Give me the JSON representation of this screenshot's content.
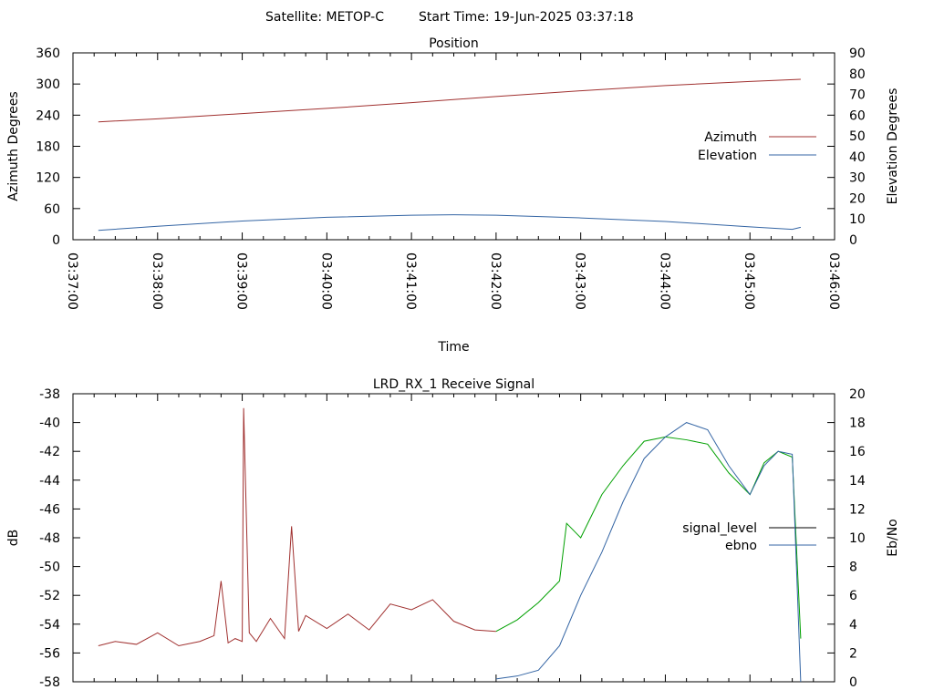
{
  "header": {
    "satellite": "Satellite: METOP-C",
    "start_time": "Start Time: 19-Jun-2025 03:37:18"
  },
  "chart_data": [
    {
      "type": "line",
      "title": "Position",
      "xlabel": "Time",
      "ylabel": "Azimuth Degrees",
      "y2label": "Elevation Degrees",
      "xlim": [
        "03:37:00",
        "03:46:00"
      ],
      "ylim": [
        0,
        360
      ],
      "y2lim": [
        0,
        90
      ],
      "xticks": [
        "03:37:00",
        "03:38:00",
        "03:39:00",
        "03:40:00",
        "03:41:00",
        "03:42:00",
        "03:43:00",
        "03:44:00",
        "03:45:00",
        "03:46:00"
      ],
      "yticks": [
        "0",
        "60",
        "120",
        "180",
        "240",
        "300",
        "360"
      ],
      "y2ticks": [
        "0",
        "10",
        "20",
        "30",
        "40",
        "50",
        "60",
        "70",
        "80",
        "90"
      ],
      "legend_position": "right",
      "grid": false,
      "series": [
        {
          "name": "Azimuth",
          "axis": "y",
          "color": "#a0302f",
          "x": [
            "03:37:18",
            "03:38:00",
            "03:39:00",
            "03:40:00",
            "03:41:00",
            "03:42:00",
            "03:43:00",
            "03:44:00",
            "03:45:00",
            "03:45:36"
          ],
          "y": [
            227,
            233,
            243,
            253,
            264,
            276,
            287,
            297,
            305,
            309
          ]
        },
        {
          "name": "Elevation",
          "axis": "y2",
          "color": "#3465a4",
          "x": [
            "03:37:18",
            "03:38:00",
            "03:39:00",
            "03:40:00",
            "03:41:00",
            "03:41:30",
            "03:42:00",
            "03:43:00",
            "03:44:00",
            "03:45:00",
            "03:45:30",
            "03:45:36"
          ],
          "y": [
            4.5,
            6.5,
            9,
            10.8,
            11.8,
            12,
            11.8,
            10.5,
            8.8,
            6.2,
            5,
            6
          ]
        }
      ]
    },
    {
      "type": "line",
      "title": "LRD_RX_1 Receive Signal",
      "ylabel": "dB",
      "y2label": "Eb/No",
      "xlim": [
        "03:37:00",
        "03:46:00"
      ],
      "ylim": [
        -58,
        -38
      ],
      "y2lim": [
        0,
        20
      ],
      "yticks": [
        "-38",
        "-40",
        "-42",
        "-44",
        "-46",
        "-48",
        "-50",
        "-52",
        "-54",
        "-56",
        "-58"
      ],
      "y2ticks": [
        "0",
        "2",
        "4",
        "6",
        "8",
        "10",
        "12",
        "14",
        "16",
        "18",
        "20"
      ],
      "legend_position": "right",
      "grid": false,
      "series": [
        {
          "name": "signal_level",
          "axis": "y",
          "legend_color": "#000000",
          "color": "#a0302f",
          "color_after_lock": "#00a000",
          "lock_x": "03:42:00",
          "x": [
            "03:37:18",
            "03:37:30",
            "03:37:45",
            "03:38:00",
            "03:38:15",
            "03:38:30",
            "03:38:40",
            "03:38:45",
            "03:38:50",
            "03:38:55",
            "03:39:00",
            "03:39:01",
            "03:39:05",
            "03:39:10",
            "03:39:20",
            "03:39:30",
            "03:39:35",
            "03:39:40",
            "03:39:45",
            "03:40:00",
            "03:40:15",
            "03:40:30",
            "03:40:45",
            "03:41:00",
            "03:41:15",
            "03:41:30",
            "03:41:45",
            "03:42:00",
            "03:42:15",
            "03:42:30",
            "03:42:45",
            "03:42:50",
            "03:43:00",
            "03:43:15",
            "03:43:30",
            "03:43:45",
            "03:44:00",
            "03:44:15",
            "03:44:30",
            "03:44:45",
            "03:45:00",
            "03:45:10",
            "03:45:20",
            "03:45:30",
            "03:45:36"
          ],
          "y": [
            -55.5,
            -55.2,
            -55.4,
            -54.6,
            -55.5,
            -55.2,
            -54.8,
            -51.0,
            -55.3,
            -55.0,
            -55.2,
            -39.0,
            -54.6,
            -55.2,
            -53.6,
            -55.0,
            -47.2,
            -54.5,
            -53.4,
            -54.3,
            -53.3,
            -54.4,
            -52.6,
            -53.0,
            -52.3,
            -53.8,
            -54.4,
            -54.5,
            -53.7,
            -52.5,
            -51.0,
            -47.0,
            -48.0,
            -45.0,
            -43.0,
            -41.3,
            -41.0,
            -41.2,
            -41.5,
            -43.5,
            -45.0,
            -42.8,
            -42.0,
            -42.4,
            -55.0
          ]
        },
        {
          "name": "ebno",
          "axis": "y2",
          "color": "#3465a4",
          "x": [
            "03:42:00",
            "03:42:15",
            "03:42:30",
            "03:42:45",
            "03:43:00",
            "03:43:15",
            "03:43:30",
            "03:43:45",
            "03:44:00",
            "03:44:15",
            "03:44:30",
            "03:44:45",
            "03:45:00",
            "03:45:10",
            "03:45:20",
            "03:45:30",
            "03:45:36"
          ],
          "y": [
            0.2,
            0.4,
            0.8,
            2.5,
            6.0,
            9.0,
            12.5,
            15.5,
            17.0,
            18.0,
            17.5,
            15.0,
            13.0,
            15.0,
            16.0,
            15.8,
            0
          ]
        }
      ]
    }
  ]
}
